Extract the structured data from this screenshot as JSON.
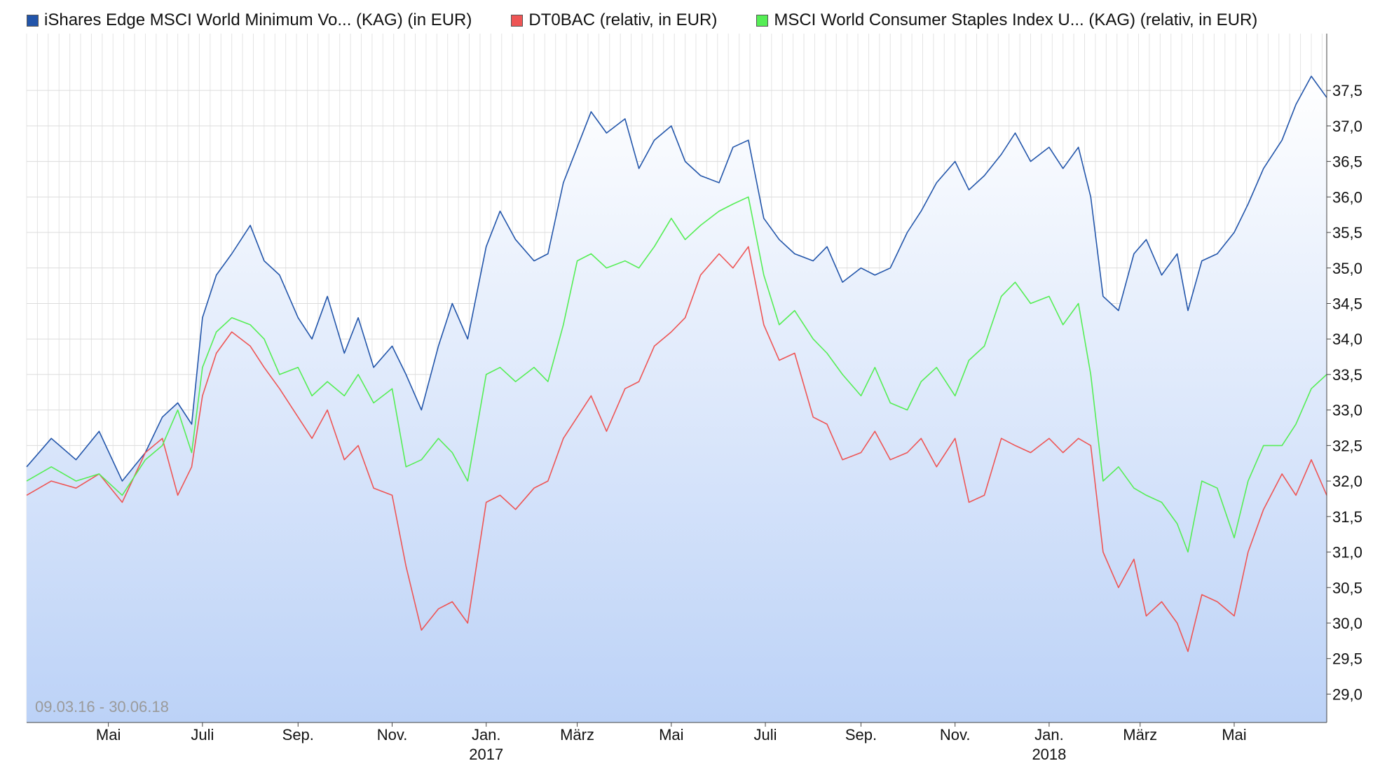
{
  "chart_data": {
    "type": "line",
    "date_range_label": "09.03.16 - 30.06.18",
    "y_axis": {
      "min": 28.6,
      "max": 38.3,
      "ticks": [
        "29,0",
        "29,5",
        "30,0",
        "30,5",
        "31,0",
        "31,5",
        "32,0",
        "32,5",
        "33,0",
        "33,5",
        "34,0",
        "34,5",
        "35,0",
        "35,5",
        "36,0",
        "36,5",
        "37,0",
        "37,5"
      ],
      "tick_values": [
        29.0,
        29.5,
        30.0,
        30.5,
        31.0,
        31.5,
        32.0,
        32.5,
        33.0,
        33.5,
        34.0,
        34.5,
        35.0,
        35.5,
        36.0,
        36.5,
        37.0,
        37.5
      ],
      "position": "right"
    },
    "x_axis": {
      "start": "2016-03-09",
      "end": "2018-06-30",
      "month_labels": [
        {
          "date": "2016-05-01",
          "label": "Mai",
          "year": ""
        },
        {
          "date": "2016-07-01",
          "label": "Juli",
          "year": ""
        },
        {
          "date": "2016-09-01",
          "label": "Sep.",
          "year": ""
        },
        {
          "date": "2016-11-01",
          "label": "Nov.",
          "year": ""
        },
        {
          "date": "2017-01-01",
          "label": "Jan.",
          "year": "2017"
        },
        {
          "date": "2017-03-01",
          "label": "März",
          "year": ""
        },
        {
          "date": "2017-05-01",
          "label": "Mai",
          "year": ""
        },
        {
          "date": "2017-07-01",
          "label": "Juli",
          "year": ""
        },
        {
          "date": "2017-09-01",
          "label": "Sep.",
          "year": ""
        },
        {
          "date": "2017-11-01",
          "label": "Nov.",
          "year": ""
        },
        {
          "date": "2018-01-01",
          "label": "Jan.",
          "year": "2018"
        },
        {
          "date": "2018-03-01",
          "label": "März",
          "year": ""
        },
        {
          "date": "2018-05-01",
          "label": "Mai",
          "year": ""
        }
      ]
    },
    "series": [
      {
        "name": "iShares Edge MSCI World Minimum Vo... (KAG) (in EUR)",
        "color": "#2255aa",
        "filled": true,
        "points": [
          [
            "2016-03-09",
            32.2
          ],
          [
            "2016-03-25",
            32.6
          ],
          [
            "2016-04-10",
            32.3
          ],
          [
            "2016-04-25",
            32.7
          ],
          [
            "2016-05-10",
            32.0
          ],
          [
            "2016-05-25",
            32.4
          ],
          [
            "2016-06-05",
            32.9
          ],
          [
            "2016-06-15",
            33.1
          ],
          [
            "2016-06-24",
            32.8
          ],
          [
            "2016-07-01",
            34.3
          ],
          [
            "2016-07-10",
            34.9
          ],
          [
            "2016-07-20",
            35.2
          ],
          [
            "2016-08-01",
            35.6
          ],
          [
            "2016-08-10",
            35.1
          ],
          [
            "2016-08-20",
            34.9
          ],
          [
            "2016-09-01",
            34.3
          ],
          [
            "2016-09-10",
            34.0
          ],
          [
            "2016-09-20",
            34.6
          ],
          [
            "2016-10-01",
            33.8
          ],
          [
            "2016-10-10",
            34.3
          ],
          [
            "2016-10-20",
            33.6
          ],
          [
            "2016-11-01",
            33.9
          ],
          [
            "2016-11-10",
            33.5
          ],
          [
            "2016-11-20",
            33.0
          ],
          [
            "2016-12-01",
            33.9
          ],
          [
            "2016-12-10",
            34.5
          ],
          [
            "2016-12-20",
            34.0
          ],
          [
            "2017-01-01",
            35.3
          ],
          [
            "2017-01-10",
            35.8
          ],
          [
            "2017-01-20",
            35.4
          ],
          [
            "2017-02-01",
            35.1
          ],
          [
            "2017-02-10",
            35.2
          ],
          [
            "2017-02-20",
            36.2
          ],
          [
            "2017-03-01",
            36.7
          ],
          [
            "2017-03-10",
            37.2
          ],
          [
            "2017-03-20",
            36.9
          ],
          [
            "2017-04-01",
            37.1
          ],
          [
            "2017-04-10",
            36.4
          ],
          [
            "2017-04-20",
            36.8
          ],
          [
            "2017-05-01",
            37.0
          ],
          [
            "2017-05-10",
            36.5
          ],
          [
            "2017-05-20",
            36.3
          ],
          [
            "2017-06-01",
            36.2
          ],
          [
            "2017-06-10",
            36.7
          ],
          [
            "2017-06-20",
            36.8
          ],
          [
            "2017-06-30",
            35.7
          ],
          [
            "2017-07-10",
            35.4
          ],
          [
            "2017-07-20",
            35.2
          ],
          [
            "2017-08-01",
            35.1
          ],
          [
            "2017-08-10",
            35.3
          ],
          [
            "2017-08-20",
            34.8
          ],
          [
            "2017-09-01",
            35.0
          ],
          [
            "2017-09-10",
            34.9
          ],
          [
            "2017-09-20",
            35.0
          ],
          [
            "2017-10-01",
            35.5
          ],
          [
            "2017-10-10",
            35.8
          ],
          [
            "2017-10-20",
            36.2
          ],
          [
            "2017-11-01",
            36.5
          ],
          [
            "2017-11-10",
            36.1
          ],
          [
            "2017-11-20",
            36.3
          ],
          [
            "2017-12-01",
            36.6
          ],
          [
            "2017-12-10",
            36.9
          ],
          [
            "2017-12-20",
            36.5
          ],
          [
            "2018-01-01",
            36.7
          ],
          [
            "2018-01-10",
            36.4
          ],
          [
            "2018-01-20",
            36.7
          ],
          [
            "2018-01-28",
            36.0
          ],
          [
            "2018-02-05",
            34.6
          ],
          [
            "2018-02-15",
            34.4
          ],
          [
            "2018-02-25",
            35.2
          ],
          [
            "2018-03-05",
            35.4
          ],
          [
            "2018-03-15",
            34.9
          ],
          [
            "2018-03-25",
            35.2
          ],
          [
            "2018-04-01",
            34.4
          ],
          [
            "2018-04-10",
            35.1
          ],
          [
            "2018-04-20",
            35.2
          ],
          [
            "2018-05-01",
            35.5
          ],
          [
            "2018-05-10",
            35.9
          ],
          [
            "2018-05-20",
            36.4
          ],
          [
            "2018-06-01",
            36.8
          ],
          [
            "2018-06-10",
            37.3
          ],
          [
            "2018-06-20",
            37.7
          ],
          [
            "2018-06-30",
            37.4
          ]
        ]
      },
      {
        "name": "DT0BAC (relativ, in EUR)",
        "color": "#ee5555",
        "filled": false,
        "points": [
          [
            "2016-03-09",
            31.8
          ],
          [
            "2016-03-25",
            32.0
          ],
          [
            "2016-04-10",
            31.9
          ],
          [
            "2016-04-25",
            32.1
          ],
          [
            "2016-05-10",
            31.7
          ],
          [
            "2016-05-25",
            32.4
          ],
          [
            "2016-06-05",
            32.6
          ],
          [
            "2016-06-15",
            31.8
          ],
          [
            "2016-06-24",
            32.2
          ],
          [
            "2016-07-01",
            33.2
          ],
          [
            "2016-07-10",
            33.8
          ],
          [
            "2016-07-20",
            34.1
          ],
          [
            "2016-08-01",
            33.9
          ],
          [
            "2016-08-10",
            33.6
          ],
          [
            "2016-08-20",
            33.3
          ],
          [
            "2016-09-01",
            32.9
          ],
          [
            "2016-09-10",
            32.6
          ],
          [
            "2016-09-20",
            33.0
          ],
          [
            "2016-10-01",
            32.3
          ],
          [
            "2016-10-10",
            32.5
          ],
          [
            "2016-10-20",
            31.9
          ],
          [
            "2016-11-01",
            31.8
          ],
          [
            "2016-11-10",
            30.8
          ],
          [
            "2016-11-20",
            29.9
          ],
          [
            "2016-12-01",
            30.2
          ],
          [
            "2016-12-10",
            30.3
          ],
          [
            "2016-12-20",
            30.0
          ],
          [
            "2017-01-01",
            31.7
          ],
          [
            "2017-01-10",
            31.8
          ],
          [
            "2017-01-20",
            31.6
          ],
          [
            "2017-02-01",
            31.9
          ],
          [
            "2017-02-10",
            32.0
          ],
          [
            "2017-02-20",
            32.6
          ],
          [
            "2017-03-01",
            32.9
          ],
          [
            "2017-03-10",
            33.2
          ],
          [
            "2017-03-20",
            32.7
          ],
          [
            "2017-04-01",
            33.3
          ],
          [
            "2017-04-10",
            33.4
          ],
          [
            "2017-04-20",
            33.9
          ],
          [
            "2017-05-01",
            34.1
          ],
          [
            "2017-05-10",
            34.3
          ],
          [
            "2017-05-20",
            34.9
          ],
          [
            "2017-06-01",
            35.2
          ],
          [
            "2017-06-10",
            35.0
          ],
          [
            "2017-06-20",
            35.3
          ],
          [
            "2017-06-30",
            34.2
          ],
          [
            "2017-07-10",
            33.7
          ],
          [
            "2017-07-20",
            33.8
          ],
          [
            "2017-08-01",
            32.9
          ],
          [
            "2017-08-10",
            32.8
          ],
          [
            "2017-08-20",
            32.3
          ],
          [
            "2017-09-01",
            32.4
          ],
          [
            "2017-09-10",
            32.7
          ],
          [
            "2017-09-20",
            32.3
          ],
          [
            "2017-10-01",
            32.4
          ],
          [
            "2017-10-10",
            32.6
          ],
          [
            "2017-10-20",
            32.2
          ],
          [
            "2017-11-01",
            32.6
          ],
          [
            "2017-11-10",
            31.7
          ],
          [
            "2017-11-20",
            31.8
          ],
          [
            "2017-12-01",
            32.6
          ],
          [
            "2017-12-10",
            32.5
          ],
          [
            "2017-12-20",
            32.4
          ],
          [
            "2018-01-01",
            32.6
          ],
          [
            "2018-01-10",
            32.4
          ],
          [
            "2018-01-20",
            32.6
          ],
          [
            "2018-01-28",
            32.5
          ],
          [
            "2018-02-05",
            31.0
          ],
          [
            "2018-02-15",
            30.5
          ],
          [
            "2018-02-25",
            30.9
          ],
          [
            "2018-03-05",
            30.1
          ],
          [
            "2018-03-15",
            30.3
          ],
          [
            "2018-03-25",
            30.0
          ],
          [
            "2018-04-01",
            29.6
          ],
          [
            "2018-04-10",
            30.4
          ],
          [
            "2018-04-20",
            30.3
          ],
          [
            "2018-05-01",
            30.1
          ],
          [
            "2018-05-10",
            31.0
          ],
          [
            "2018-05-20",
            31.6
          ],
          [
            "2018-06-01",
            32.1
          ],
          [
            "2018-06-10",
            31.8
          ],
          [
            "2018-06-20",
            32.3
          ],
          [
            "2018-06-30",
            31.8
          ]
        ]
      },
      {
        "name": "MSCI World Consumer Staples Index U... (KAG) (relativ, in EUR)",
        "color": "#55ee55",
        "filled": false,
        "points": [
          [
            "2016-03-09",
            32.0
          ],
          [
            "2016-03-25",
            32.2
          ],
          [
            "2016-04-10",
            32.0
          ],
          [
            "2016-04-25",
            32.1
          ],
          [
            "2016-05-10",
            31.8
          ],
          [
            "2016-05-25",
            32.3
          ],
          [
            "2016-06-05",
            32.5
          ],
          [
            "2016-06-15",
            33.0
          ],
          [
            "2016-06-24",
            32.4
          ],
          [
            "2016-07-01",
            33.6
          ],
          [
            "2016-07-10",
            34.1
          ],
          [
            "2016-07-20",
            34.3
          ],
          [
            "2016-08-01",
            34.2
          ],
          [
            "2016-08-10",
            34.0
          ],
          [
            "2016-08-20",
            33.5
          ],
          [
            "2016-09-01",
            33.6
          ],
          [
            "2016-09-10",
            33.2
          ],
          [
            "2016-09-20",
            33.4
          ],
          [
            "2016-10-01",
            33.2
          ],
          [
            "2016-10-10",
            33.5
          ],
          [
            "2016-10-20",
            33.1
          ],
          [
            "2016-11-01",
            33.3
          ],
          [
            "2016-11-10",
            32.2
          ],
          [
            "2016-11-20",
            32.3
          ],
          [
            "2016-12-01",
            32.6
          ],
          [
            "2016-12-10",
            32.4
          ],
          [
            "2016-12-20",
            32.0
          ],
          [
            "2017-01-01",
            33.5
          ],
          [
            "2017-01-10",
            33.6
          ],
          [
            "2017-01-20",
            33.4
          ],
          [
            "2017-02-01",
            33.6
          ],
          [
            "2017-02-10",
            33.4
          ],
          [
            "2017-02-20",
            34.2
          ],
          [
            "2017-03-01",
            35.1
          ],
          [
            "2017-03-10",
            35.2
          ],
          [
            "2017-03-20",
            35.0
          ],
          [
            "2017-04-01",
            35.1
          ],
          [
            "2017-04-10",
            35.0
          ],
          [
            "2017-04-20",
            35.3
          ],
          [
            "2017-05-01",
            35.7
          ],
          [
            "2017-05-10",
            35.4
          ],
          [
            "2017-05-20",
            35.6
          ],
          [
            "2017-06-01",
            35.8
          ],
          [
            "2017-06-10",
            35.9
          ],
          [
            "2017-06-20",
            36.0
          ],
          [
            "2017-06-30",
            34.9
          ],
          [
            "2017-07-10",
            34.2
          ],
          [
            "2017-07-20",
            34.4
          ],
          [
            "2017-08-01",
            34.0
          ],
          [
            "2017-08-10",
            33.8
          ],
          [
            "2017-08-20",
            33.5
          ],
          [
            "2017-09-01",
            33.2
          ],
          [
            "2017-09-10",
            33.6
          ],
          [
            "2017-09-20",
            33.1
          ],
          [
            "2017-10-01",
            33.0
          ],
          [
            "2017-10-10",
            33.4
          ],
          [
            "2017-10-20",
            33.6
          ],
          [
            "2017-11-01",
            33.2
          ],
          [
            "2017-11-10",
            33.7
          ],
          [
            "2017-11-20",
            33.9
          ],
          [
            "2017-12-01",
            34.6
          ],
          [
            "2017-12-10",
            34.8
          ],
          [
            "2017-12-20",
            34.5
          ],
          [
            "2018-01-01",
            34.6
          ],
          [
            "2018-01-10",
            34.2
          ],
          [
            "2018-01-20",
            34.5
          ],
          [
            "2018-01-28",
            33.5
          ],
          [
            "2018-02-05",
            32.0
          ],
          [
            "2018-02-15",
            32.2
          ],
          [
            "2018-02-25",
            31.9
          ],
          [
            "2018-03-05",
            31.8
          ],
          [
            "2018-03-15",
            31.7
          ],
          [
            "2018-03-25",
            31.4
          ],
          [
            "2018-04-01",
            31.0
          ],
          [
            "2018-04-10",
            32.0
          ],
          [
            "2018-04-20",
            31.9
          ],
          [
            "2018-05-01",
            31.2
          ],
          [
            "2018-05-10",
            32.0
          ],
          [
            "2018-05-20",
            32.5
          ],
          [
            "2018-06-01",
            32.5
          ],
          [
            "2018-06-10",
            32.8
          ],
          [
            "2018-06-20",
            33.3
          ],
          [
            "2018-06-30",
            33.5
          ]
        ]
      }
    ]
  }
}
